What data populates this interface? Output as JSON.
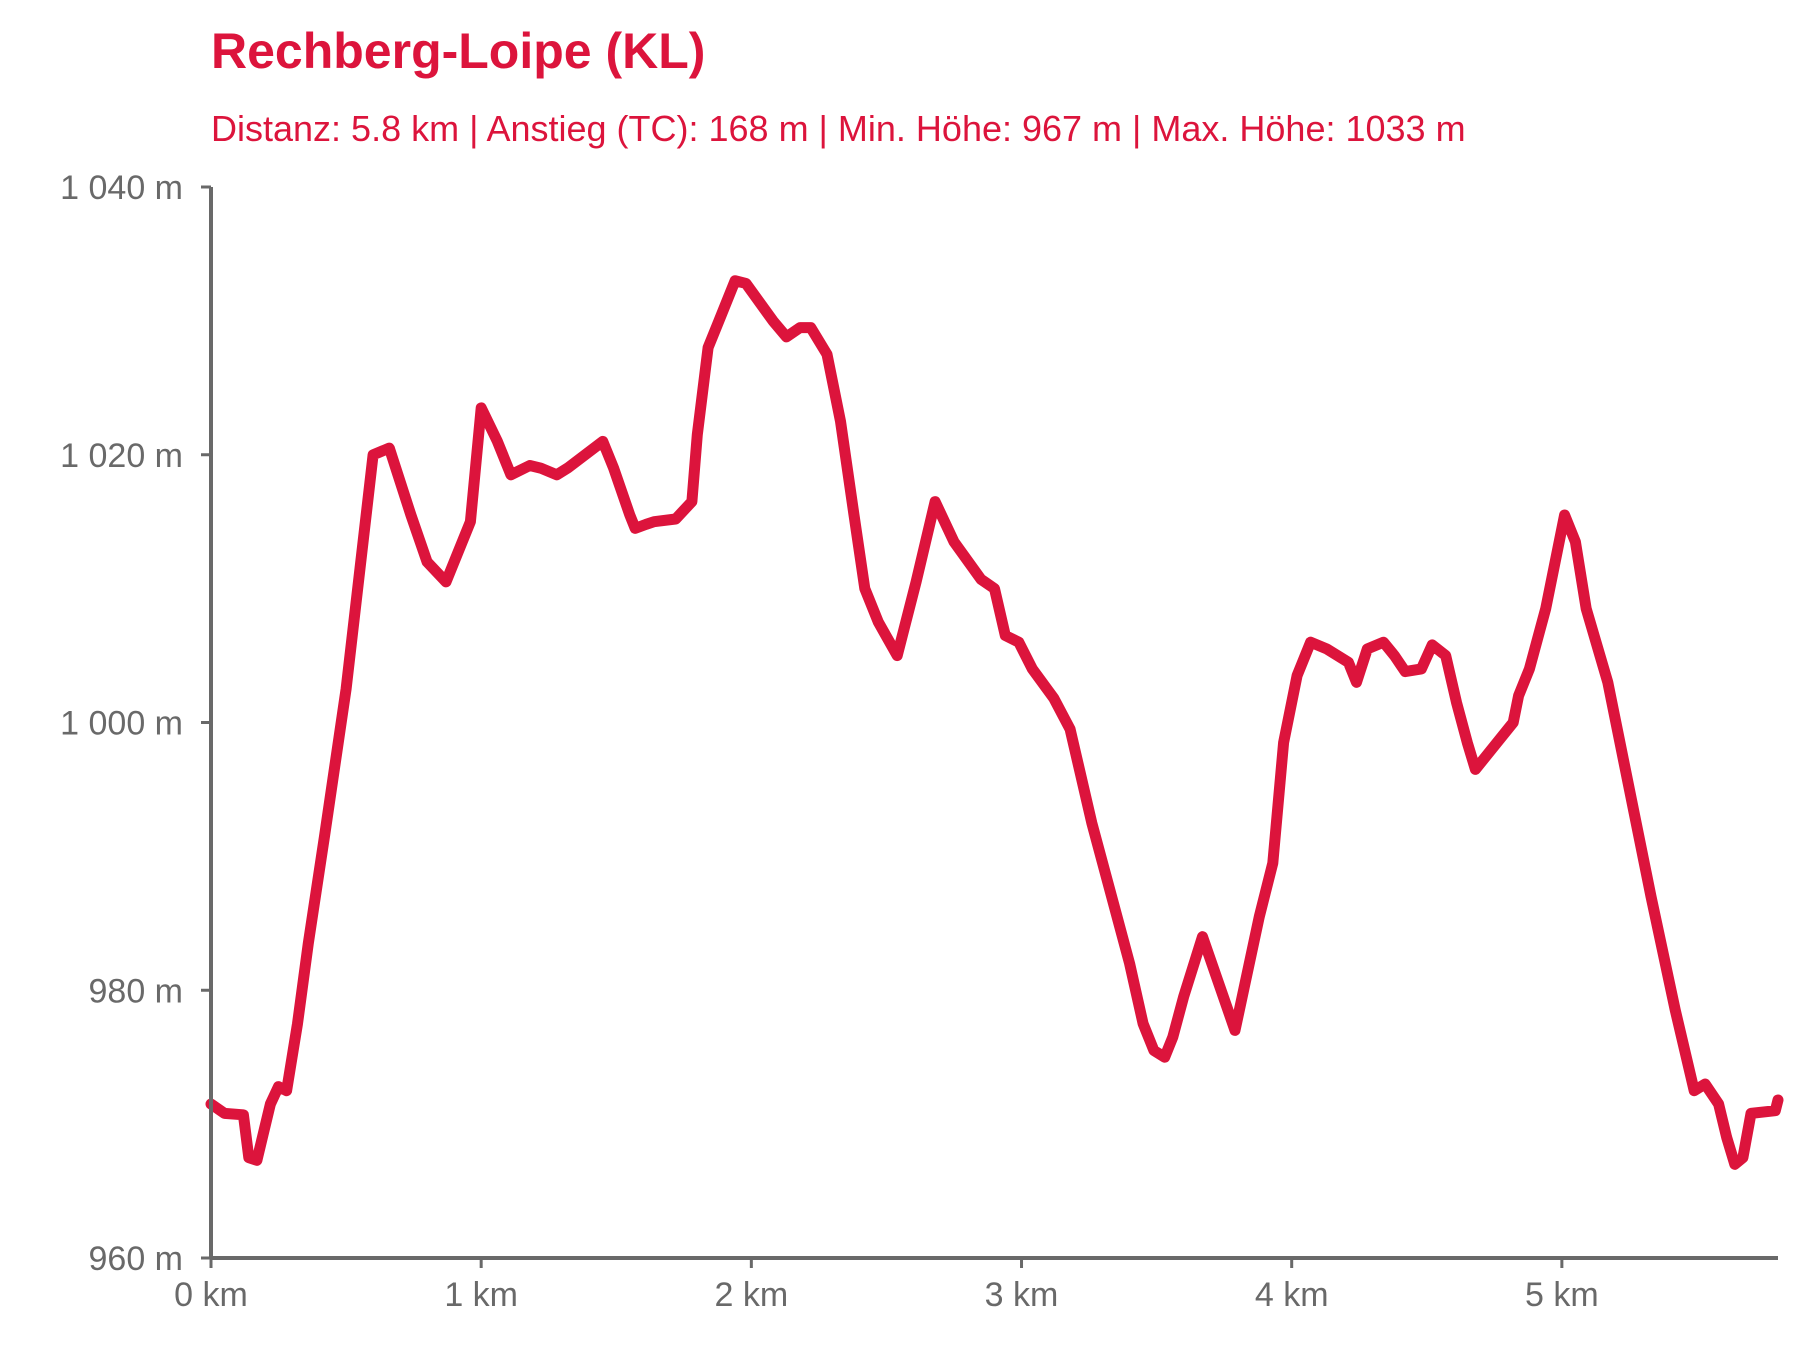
{
  "chart_data": {
    "type": "line",
    "title": "Rechberg-Loipe (KL)",
    "subtitle": "Distanz: 5.8 km | Anstieg (TC): 168 m | Min. Höhe: 967 m | Max. Höhe: 1033 m",
    "xlabel": "",
    "ylabel": "",
    "xlim": [
      0,
      5.8
    ],
    "ylim": [
      960,
      1040
    ],
    "x_ticks": [
      0,
      1,
      2,
      3,
      4,
      5
    ],
    "x_tick_labels": [
      "0 km",
      "1 km",
      "2 km",
      "3 km",
      "4 km",
      "5 km"
    ],
    "y_ticks": [
      960,
      980,
      1000,
      1020,
      1040
    ],
    "y_tick_labels": [
      "960 m",
      "980 m",
      "1 000 m",
      "1 020 m",
      "1 040 m"
    ],
    "grid": false,
    "line_color": "#dc143c",
    "axis_color": "#696969",
    "series": [
      {
        "x": [
          0,
          0.05,
          0.12,
          0.14,
          0.17,
          0.22,
          0.25,
          0.28,
          0.32,
          0.36,
          0.42,
          0.5,
          0.6,
          0.66,
          0.74,
          0.8,
          0.87,
          0.96,
          1.0,
          1.06,
          1.11,
          1.18,
          1.22,
          1.28,
          1.32,
          1.45,
          1.49,
          1.55,
          1.57,
          1.61,
          1.64,
          1.72,
          1.78,
          1.8,
          1.84,
          1.88,
          1.94,
          1.98,
          2.08,
          2.13,
          2.18,
          2.22,
          2.28,
          2.33,
          2.38,
          2.42,
          2.47,
          2.54,
          2.61,
          2.68,
          2.75,
          2.85,
          2.9,
          2.94,
          2.99,
          3.04,
          3.12,
          3.18,
          3.26,
          3.34,
          3.4,
          3.45,
          3.49,
          3.53,
          3.56,
          3.6,
          3.67,
          3.79,
          3.88,
          3.93,
          3.97,
          4.02,
          4.07,
          4.13,
          4.21,
          4.24,
          4.28,
          4.34,
          4.38,
          4.42,
          4.48,
          4.52,
          4.57,
          4.61,
          4.65,
          4.68,
          4.82,
          4.84,
          4.88,
          4.94,
          5.01,
          5.05,
          5.09,
          5.17,
          5.25,
          5.33,
          5.42,
          5.49,
          5.53,
          5.58,
          5.61,
          5.64,
          5.67,
          5.7,
          5.79,
          5.8
        ],
        "y": [
          971.5,
          970.8,
          970.7,
          967.5,
          967.3,
          971.5,
          972.8,
          972.5,
          977.5,
          983.5,
          991.5,
          1002.5,
          1020.0,
          1020.5,
          1015.5,
          1012.0,
          1010.5,
          1015.0,
          1023.5,
          1021.0,
          1018.5,
          1019.2,
          1019.0,
          1018.5,
          1019.0,
          1021.0,
          1019.0,
          1015.5,
          1014.5,
          1014.8,
          1015.0,
          1015.2,
          1016.5,
          1021.5,
          1028.0,
          1030.0,
          1033.0,
          1032.8,
          1030.0,
          1028.8,
          1029.5,
          1029.5,
          1027.5,
          1022.5,
          1015.5,
          1010.0,
          1007.5,
          1005.0,
          1010.5,
          1016.5,
          1013.5,
          1010.7,
          1010.0,
          1006.5,
          1006.0,
          1004.0,
          1001.8,
          999.5,
          992.5,
          986.5,
          982.0,
          977.5,
          975.5,
          975.0,
          976.5,
          979.5,
          984.0,
          977.0,
          985.5,
          989.5,
          998.5,
          1003.5,
          1006.0,
          1005.5,
          1004.5,
          1003.0,
          1005.5,
          1006.0,
          1005.0,
          1003.8,
          1004.0,
          1005.8,
          1005.0,
          1001.5,
          998.5,
          996.5,
          1000.0,
          1002.0,
          1004.0,
          1008.5,
          1015.5,
          1013.5,
          1008.5,
          1003.0,
          995.0,
          987.0,
          978.5,
          972.5,
          973.0,
          971.5,
          969.0,
          967.0,
          967.5,
          970.8,
          971.0,
          971.8
        ]
      }
    ]
  }
}
